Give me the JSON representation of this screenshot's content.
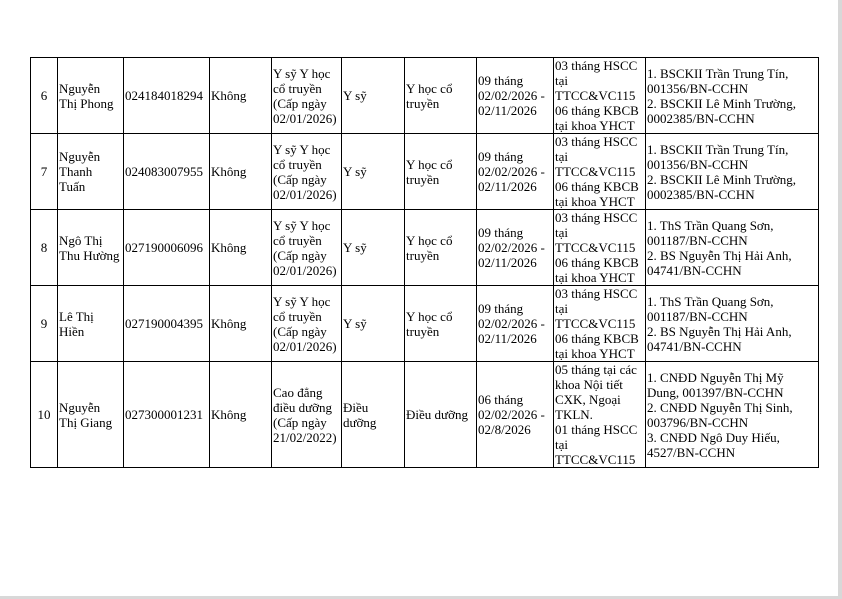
{
  "rows": [
    {
      "no": "6",
      "name": "Nguyễn\nThị Phong",
      "id": "024184018294",
      "flag": "Không",
      "degree": "Y sỹ Y học\ncổ truyền\n(Cấp ngày\n02/01/2026)",
      "title": "Y sỹ",
      "scope": "Y học cổ\ntruyền",
      "period": "09 tháng\n02/02/2026 -\n02/11/2026",
      "place": "03 tháng HSCC\ntại\nTTCC&VC115\n06 tháng KBCB\ntại khoa YHCT",
      "supervisors": "1. BSCKII Trần Trung Tín,\n001356/BN-CCHN\n2. BSCKII Lê Minh Trường,\n0002385/BN-CCHN"
    },
    {
      "no": "7",
      "name": "Nguyễn\nThanh\nTuấn",
      "id": "024083007955",
      "flag": "Không",
      "degree": "Y sỹ Y học\ncổ truyền\n(Cấp ngày\n02/01/2026)",
      "title": "Y sỹ",
      "scope": "Y học cổ\ntruyền",
      "period": "09 tháng\n02/02/2026 -\n02/11/2026",
      "place": "03 tháng HSCC\ntại\nTTCC&VC115\n06 tháng KBCB\ntại khoa YHCT",
      "supervisors": "1. BSCKII Trần Trung Tín,\n001356/BN-CCHN\n2. BSCKII Lê Minh Trường,\n0002385/BN-CCHN"
    },
    {
      "no": "8",
      "name": "Ngô Thị\nThu Hường",
      "id": "027190006096",
      "flag": "Không",
      "degree": "Y sỹ Y học\ncổ truyền\n(Cấp ngày\n02/01/2026)",
      "title": "Y sỹ",
      "scope": "Y học cổ\ntruyền",
      "period": "09 tháng\n02/02/2026 -\n02/11/2026",
      "place": "03 tháng HSCC\ntại\nTTCC&VC115\n06 tháng KBCB\ntại khoa YHCT",
      "supervisors": "1. ThS Trần Quang Sơn,\n001187/BN-CCHN\n2. BS Nguyễn Thị Hải Anh,\n04741/BN-CCHN"
    },
    {
      "no": "9",
      "name": "Lê Thị\nHiền",
      "id": "027190004395",
      "flag": "Không",
      "degree": "Y sỹ Y học\ncổ truyền\n(Cấp ngày\n02/01/2026)",
      "title": "Y sỹ",
      "scope": "Y học cổ\ntruyền",
      "period": "09 tháng\n02/02/2026 -\n02/11/2026",
      "place": "03 tháng HSCC\ntại\nTTCC&VC115\n06 tháng KBCB\ntại khoa YHCT",
      "supervisors": "1. ThS Trần Quang Sơn,\n001187/BN-CCHN\n2. BS Nguyễn Thị Hải Anh,\n04741/BN-CCHN"
    },
    {
      "no": "10",
      "name": "Nguyễn\nThị Giang",
      "id": "027300001231",
      "flag": "Không",
      "degree": "Cao đẳng\nđiều dưỡng\n(Cấp ngày\n21/02/2022)",
      "title": "Điều\ndưỡng",
      "scope": "Điều dưỡng",
      "period": "06 tháng\n02/02/2026 -\n02/8/2026",
      "place": "05 tháng tại các\nkhoa Nội tiết\nCXK, Ngoại\nTKLN.\n01 tháng HSCC\ntại\nTTCC&VC115",
      "supervisors": "1. CNĐD Nguyễn Thị Mỹ\nDung, 001397/BN-CCHN\n2. CNĐD Nguyễn Thị Sinh,\n003796/BN-CCHN\n3. CNĐD Ngô Duy Hiếu,\n4527/BN-CCHN"
    }
  ]
}
